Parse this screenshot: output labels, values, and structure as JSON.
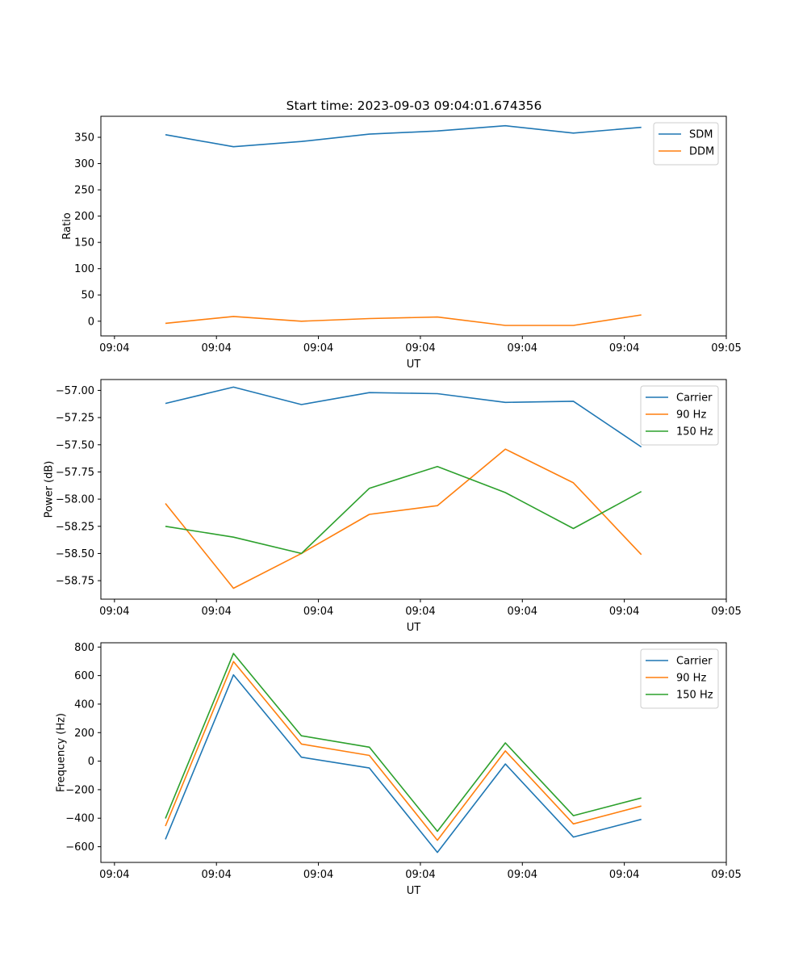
{
  "title": "Start time: 2023-09-03 09:04:01.674356",
  "colors": {
    "blue": "#1f77b4",
    "orange": "#ff7f0e",
    "green": "#2ca02c"
  },
  "chart_data": [
    {
      "type": "line",
      "xlabel": "UT",
      "ylabel": "Ratio",
      "xlim": [
        -0.2,
        9.0
      ],
      "ylim": [
        -28,
        390
      ],
      "x": [
        0.75,
        1.75,
        2.75,
        3.75,
        4.75,
        5.75,
        6.75,
        7.75
      ],
      "xticks": [
        0,
        1.5,
        3,
        4.5,
        6,
        7.5,
        9
      ],
      "xtick_labels": [
        "09:04",
        "09:04",
        "09:04",
        "09:04",
        "09:04",
        "09:04",
        "09:05"
      ],
      "yticks": [
        0,
        50,
        100,
        150,
        200,
        250,
        300,
        350
      ],
      "ytick_labels": [
        "0",
        "50",
        "100",
        "150",
        "200",
        "250",
        "300",
        "350"
      ],
      "legend": "top-right",
      "series": [
        {
          "name": "SDM",
          "color": "#1f77b4",
          "values": [
            355,
            332,
            342,
            356,
            362,
            372,
            358,
            369
          ]
        },
        {
          "name": "DDM",
          "color": "#ff7f0e",
          "values": [
            -4,
            9,
            0,
            5,
            8,
            -8,
            -8,
            12
          ]
        }
      ]
    },
    {
      "type": "line",
      "xlabel": "UT",
      "ylabel": "Power (dB)",
      "xlim": [
        -0.2,
        9.0
      ],
      "ylim": [
        -58.92,
        -56.9
      ],
      "x": [
        0.75,
        1.75,
        2.75,
        3.75,
        4.75,
        5.75,
        6.75,
        7.75
      ],
      "xticks": [
        0,
        1.5,
        3,
        4.5,
        6,
        7.5,
        9
      ],
      "xtick_labels": [
        "09:04",
        "09:04",
        "09:04",
        "09:04",
        "09:04",
        "09:04",
        "09:05"
      ],
      "yticks": [
        -57.0,
        -57.25,
        -57.5,
        -57.75,
        -58.0,
        -58.25,
        -58.5,
        -58.75
      ],
      "ytick_labels": [
        "−57.00",
        "−57.25",
        "−57.50",
        "−57.75",
        "−58.00",
        "−58.25",
        "−58.50",
        "−58.75"
      ],
      "legend": "top-right",
      "series": [
        {
          "name": "Carrier",
          "color": "#1f77b4",
          "values": [
            -57.12,
            -56.97,
            -57.13,
            -57.02,
            -57.03,
            -57.11,
            -57.1,
            -57.52
          ]
        },
        {
          "name": "90 Hz",
          "color": "#ff7f0e",
          "values": [
            -58.04,
            -58.82,
            -58.5,
            -58.14,
            -58.06,
            -57.54,
            -57.85,
            -58.51
          ]
        },
        {
          "name": "150 Hz",
          "color": "#2ca02c",
          "values": [
            -58.25,
            -58.35,
            -58.5,
            -57.9,
            -57.7,
            -57.94,
            -58.27,
            -57.93
          ]
        }
      ]
    },
    {
      "type": "line",
      "xlabel": "UT",
      "ylabel": "Frequency (Hz)",
      "xlim": [
        -0.2,
        9.0
      ],
      "ylim": [
        -710,
        830
      ],
      "x": [
        0.75,
        1.75,
        2.75,
        3.75,
        4.75,
        5.75,
        6.75,
        7.75
      ],
      "xticks": [
        0,
        1.5,
        3,
        4.5,
        6,
        7.5,
        9
      ],
      "xtick_labels": [
        "09:04",
        "09:04",
        "09:04",
        "09:04",
        "09:04",
        "09:04",
        "09:05"
      ],
      "yticks": [
        -600,
        -400,
        -200,
        0,
        200,
        400,
        600,
        800
      ],
      "ytick_labels": [
        "−600",
        "−400",
        "−200",
        "0",
        "200",
        "400",
        "600",
        "800"
      ],
      "legend": "top-right",
      "series": [
        {
          "name": "Carrier",
          "color": "#1f77b4",
          "values": [
            -548,
            605,
            28,
            -48,
            -640,
            -20,
            -532,
            -408
          ]
        },
        {
          "name": "90 Hz",
          "color": "#ff7f0e",
          "values": [
            -455,
            698,
            120,
            40,
            -555,
            72,
            -440,
            -315
          ]
        },
        {
          "name": "150 Hz",
          "color": "#2ca02c",
          "values": [
            -402,
            755,
            178,
            98,
            -492,
            128,
            -382,
            -258
          ]
        }
      ]
    }
  ]
}
